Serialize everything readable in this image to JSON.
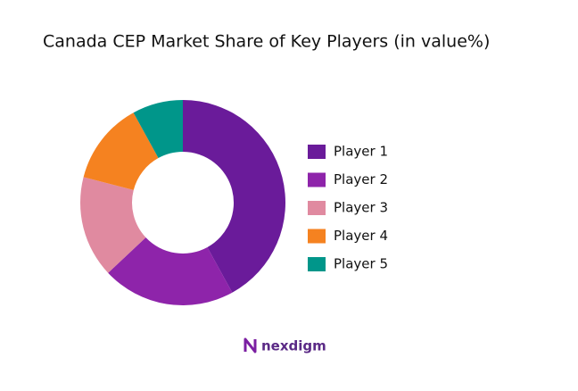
{
  "chart_data": {
    "type": "donut",
    "title": "Canada CEP Market Share of Key Players (in value%)",
    "categories": [
      "Player 1",
      "Player 2",
      "Player 3",
      "Player 4",
      "Player 5"
    ],
    "values": [
      42,
      21,
      16,
      13,
      8
    ],
    "colors": [
      "#6a1b9a",
      "#8e24aa",
      "#e08aa0",
      "#f58220",
      "#00968a"
    ],
    "legend": "right"
  },
  "footer": {
    "logo": "nexdigm"
  }
}
